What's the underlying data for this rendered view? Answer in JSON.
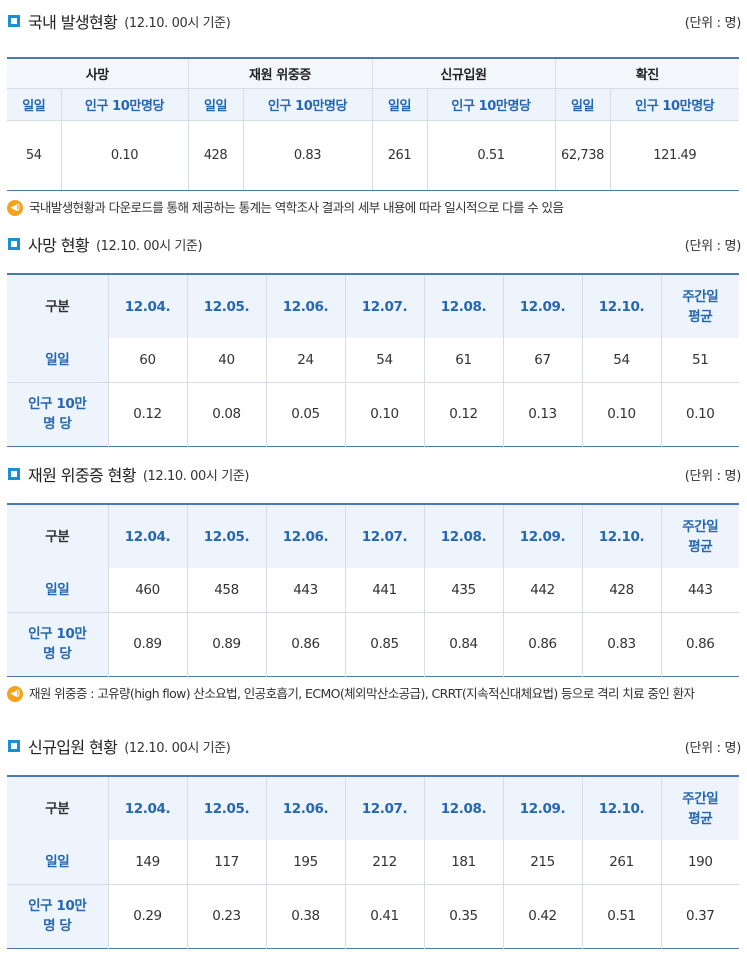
{
  "domestic": {
    "title": "국내 발생현황",
    "basis": "(12.10. 00시 기준)",
    "unit": "(단위 : 명)",
    "groups": [
      "사망",
      "재원 위중증",
      "신규입원",
      "확진"
    ],
    "sub_daily": "일일",
    "sub_per100k": "인구 10만명당",
    "values": [
      {
        "daily": "54",
        "per100k": "0.10"
      },
      {
        "daily": "428",
        "per100k": "0.83"
      },
      {
        "daily": "261",
        "per100k": "0.51"
      },
      {
        "daily": "62,738",
        "per100k": "121.49"
      }
    ],
    "note": "국내발생현황과 다운로드를 통해 제공하는 통계는 역학조사 결과의 세부 내용에 따라 일시적으로 다를 수 있음"
  },
  "columns": {
    "gubun": "구분",
    "dates": [
      "12.04.",
      "12.05.",
      "12.06.",
      "12.07.",
      "12.08.",
      "12.09.",
      "12.10."
    ],
    "avg_line1": "주간일",
    "avg_line2": "평균",
    "row_daily": "일일",
    "row_per100k_line1": "인구 10만",
    "row_per100k_line2": "명 당"
  },
  "death": {
    "title": "사망 현황",
    "basis": "(12.10. 00시 기준)",
    "unit": "(단위 : 명)",
    "daily": [
      "60",
      "40",
      "24",
      "54",
      "61",
      "67",
      "54",
      "51"
    ],
    "per100k": [
      "0.12",
      "0.08",
      "0.05",
      "0.10",
      "0.12",
      "0.13",
      "0.10",
      "0.10"
    ]
  },
  "severe": {
    "title": "재원 위중증 현황",
    "basis": "(12.10. 00시 기준)",
    "unit": "(단위 : 명)",
    "daily": [
      "460",
      "458",
      "443",
      "441",
      "435",
      "442",
      "428",
      "443"
    ],
    "per100k": [
      "0.89",
      "0.89",
      "0.86",
      "0.85",
      "0.84",
      "0.86",
      "0.83",
      "0.86"
    ],
    "note": "재원 위중증 : 고유량(high flow) 산소요법, 인공호흡기, ECMO(체외막산소공급), CRRT(지속적신대체요법) 등으로 격리 치료 중인 환자"
  },
  "admission": {
    "title": "신규입원 현황",
    "basis": "(12.10. 00시 기준)",
    "unit": "(단위 : 명)",
    "daily": [
      "149",
      "117",
      "195",
      "212",
      "181",
      "215",
      "261",
      "190"
    ],
    "per100k": [
      "0.29",
      "0.23",
      "0.38",
      "0.41",
      "0.35",
      "0.42",
      "0.51",
      "0.37"
    ]
  },
  "icons": {
    "section": "square-bullet-icon",
    "note": "speaker-icon"
  },
  "colors": {
    "accent": "#1a8fd4",
    "header_text": "#2667b3",
    "header_bg": "#eef4fb",
    "note_icon": "#f4a21a"
  }
}
